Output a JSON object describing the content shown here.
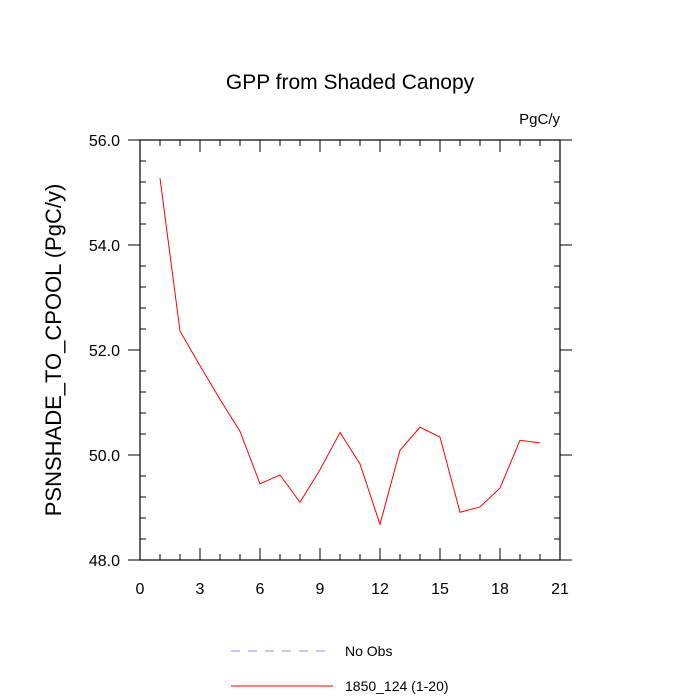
{
  "chart_data": {
    "type": "line",
    "title": "GPP from Shaded Canopy",
    "units": "PgC/y",
    "xlabel": "",
    "ylabel": "PSNSHADE_TO_CPOOL  (PgC/y)",
    "xlim": [
      0,
      21
    ],
    "ylim": [
      48.0,
      56.0
    ],
    "x_ticks": [
      "0",
      "3",
      "6",
      "9",
      "12",
      "15",
      "18",
      "21"
    ],
    "y_ticks": [
      "48.0",
      "50.0",
      "52.0",
      "54.0",
      "56.0"
    ],
    "grid": false,
    "legend_position": "bottom",
    "series": [
      {
        "name": "No Obs",
        "color": "#8888ff",
        "dash": "dashed",
        "x": [],
        "y": []
      },
      {
        "name": "1850_124 (1-20)",
        "color": "#ff0000",
        "dash": "solid",
        "x": [
          1,
          2,
          3,
          4,
          5,
          6,
          7,
          8,
          9,
          10,
          11,
          12,
          13,
          14,
          15,
          16,
          17,
          18,
          19,
          20
        ],
        "y": [
          55.27,
          52.36,
          51.7,
          51.06,
          50.45,
          49.45,
          49.62,
          49.1,
          49.72,
          50.43,
          49.83,
          48.68,
          50.09,
          50.53,
          50.34,
          48.91,
          49.01,
          49.37,
          50.28,
          50.23
        ]
      }
    ]
  }
}
